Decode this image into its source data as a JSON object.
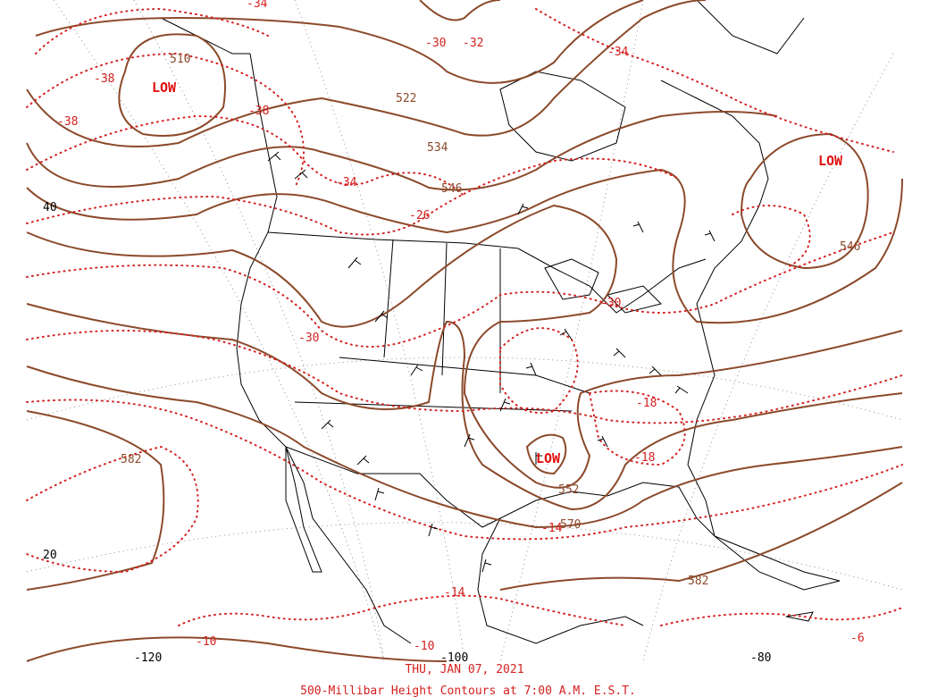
{
  "date_label": "THU, JAN 07, 2021",
  "caption": "500-Millibar Height Contours at 7:00 A.M. E.S.T.",
  "axes": {
    "longitudes": [
      "-120",
      "-100",
      "-80"
    ],
    "latitudes": [
      "40",
      "20"
    ]
  },
  "lows": [
    "LOW",
    "LOW",
    "LOW"
  ],
  "height_labels": [
    "510",
    "522",
    "534",
    "546",
    "546",
    "552",
    "570",
    "582",
    "582"
  ],
  "temperature_labels": [
    "-38",
    "-38",
    "-34",
    "-34",
    "-26",
    "-38",
    "-30",
    "-18",
    "-18",
    "-14",
    "-14",
    "-10",
    "-10",
    "-6",
    "-34",
    "-30",
    "-32",
    "-30"
  ],
  "colors": {
    "height_contour": "#8b4a2b",
    "isotherm": "#d42020",
    "low_label": "#e01010",
    "borders": "#000000"
  }
}
